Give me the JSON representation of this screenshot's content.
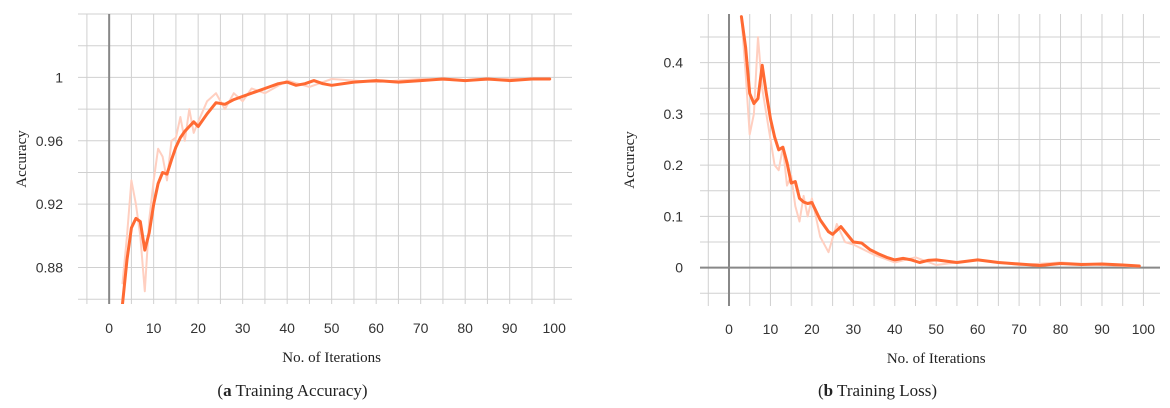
{
  "colors": {
    "line": "#ff6a33",
    "raw_line": "#ffcfc0",
    "grid": "#d0d0d0",
    "axis": "#888888"
  },
  "chart_data": [
    {
      "type": "line",
      "caption_letter": "a",
      "caption_text": " Training Accuracy",
      "xlabel": "No. of Iterations",
      "ylabel": "Accuracy",
      "xlim": [
        -7,
        104
      ],
      "ylim": [
        0.857,
        1.04
      ],
      "xticks": [
        0,
        10,
        20,
        30,
        40,
        50,
        60,
        70,
        80,
        90,
        100
      ],
      "xtick_labels": [
        "0",
        "10",
        "20",
        "30",
        "40",
        "50",
        "60",
        "70",
        "80",
        "90",
        "100"
      ],
      "yticks": [
        0.88,
        0.92,
        0.96,
        1.0
      ],
      "ytick_labels": [
        "0.88",
        "0.92",
        "0.96",
        "1"
      ],
      "grid": true,
      "series": [
        {
          "role": "smoothed",
          "x": [
            3,
            4,
            5,
            6,
            7,
            8,
            9,
            10,
            11,
            12,
            13,
            14,
            15,
            16,
            17,
            18,
            19,
            20,
            22,
            24,
            26,
            28,
            30,
            32,
            34,
            36,
            38,
            40,
            42,
            44,
            46,
            48,
            50,
            55,
            60,
            65,
            70,
            75,
            80,
            85,
            90,
            95,
            99
          ],
          "y": [
            0.857,
            0.885,
            0.905,
            0.911,
            0.909,
            0.891,
            0.902,
            0.92,
            0.933,
            0.94,
            0.939,
            0.948,
            0.956,
            0.962,
            0.966,
            0.969,
            0.972,
            0.969,
            0.977,
            0.984,
            0.983,
            0.986,
            0.988,
            0.99,
            0.992,
            0.994,
            0.996,
            0.997,
            0.995,
            0.996,
            0.998,
            0.996,
            0.995,
            0.997,
            0.998,
            0.997,
            0.998,
            0.999,
            0.998,
            0.999,
            0.998,
            0.999,
            0.999
          ]
        },
        {
          "role": "raw",
          "x": [
            3,
            4,
            5,
            6,
            7,
            8,
            9,
            10,
            11,
            12,
            13,
            14,
            15,
            16,
            17,
            18,
            19,
            20,
            22,
            24,
            26,
            28,
            30,
            32,
            35,
            40,
            45,
            50,
            60,
            70,
            80,
            90,
            99
          ],
          "y": [
            0.87,
            0.9,
            0.935,
            0.92,
            0.9,
            0.865,
            0.91,
            0.935,
            0.955,
            0.95,
            0.935,
            0.96,
            0.962,
            0.975,
            0.96,
            0.98,
            0.965,
            0.972,
            0.985,
            0.99,
            0.98,
            0.99,
            0.985,
            0.993,
            0.99,
            0.998,
            0.994,
            0.999,
            0.997,
            0.999,
            0.998,
            0.999,
            0.999
          ]
        }
      ]
    },
    {
      "type": "line",
      "caption_letter": "b",
      "caption_text": " Training Loss",
      "xlabel": "No. of Iterations",
      "ylabel": "Accuracy",
      "xlim": [
        -7,
        104
      ],
      "ylim": [
        -0.075,
        0.495
      ],
      "xticks": [
        0,
        10,
        20,
        30,
        40,
        50,
        60,
        70,
        80,
        90,
        100
      ],
      "xtick_labels": [
        "0",
        "10",
        "20",
        "30",
        "40",
        "50",
        "60",
        "70",
        "80",
        "90",
        "100"
      ],
      "yticks": [
        0,
        0.1,
        0.2,
        0.3,
        0.4
      ],
      "ytick_labels": [
        "0",
        "0.1",
        "0.2",
        "0.3",
        "0.4"
      ],
      "grid": true,
      "series": [
        {
          "role": "smoothed",
          "x": [
            3,
            4,
            5,
            6,
            7,
            8,
            9,
            10,
            11,
            12,
            13,
            14,
            15,
            16,
            17,
            18,
            19,
            20,
            22,
            24,
            25,
            27,
            28,
            30,
            32,
            34,
            36,
            38,
            40,
            42,
            44,
            46,
            48,
            50,
            55,
            60,
            65,
            70,
            75,
            80,
            85,
            90,
            95,
            99
          ],
          "y": [
            0.49,
            0.43,
            0.34,
            0.32,
            0.33,
            0.395,
            0.34,
            0.29,
            0.255,
            0.23,
            0.235,
            0.205,
            0.165,
            0.168,
            0.135,
            0.128,
            0.125,
            0.127,
            0.093,
            0.07,
            0.065,
            0.08,
            0.07,
            0.05,
            0.048,
            0.035,
            0.027,
            0.02,
            0.015,
            0.018,
            0.015,
            0.01,
            0.014,
            0.015,
            0.01,
            0.015,
            0.01,
            0.007,
            0.004,
            0.008,
            0.006,
            0.007,
            0.005,
            0.003
          ]
        },
        {
          "role": "raw",
          "x": [
            3,
            4,
            5,
            6,
            7,
            8,
            9,
            10,
            11,
            12,
            13,
            14,
            15,
            16,
            17,
            18,
            19,
            20,
            22,
            24,
            26,
            28,
            30,
            35,
            40,
            45,
            50,
            60,
            70,
            80,
            90,
            99
          ],
          "y": [
            0.49,
            0.38,
            0.26,
            0.3,
            0.45,
            0.35,
            0.3,
            0.25,
            0.2,
            0.19,
            0.235,
            0.16,
            0.18,
            0.12,
            0.09,
            0.14,
            0.1,
            0.135,
            0.06,
            0.03,
            0.085,
            0.05,
            0.045,
            0.025,
            0.01,
            0.02,
            0.005,
            0.015,
            0.005,
            0.01,
            0.005,
            0.002
          ]
        }
      ]
    }
  ]
}
